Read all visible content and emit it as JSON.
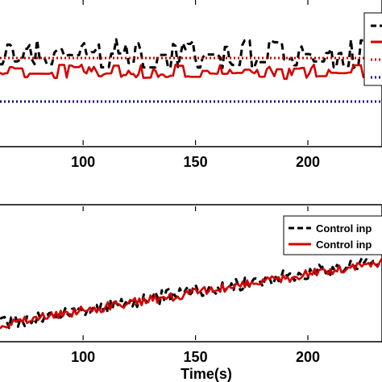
{
  "chart_data": [
    {
      "type": "line",
      "title": "",
      "xlabel": "",
      "ylabel": "",
      "xlim": [
        63,
        233
      ],
      "x_ticks": [
        100,
        150,
        200
      ],
      "ylim": [
        0,
        1
      ],
      "grid": false,
      "legend": {
        "placement": "top-right",
        "entries": [
          "",
          "",
          "",
          ""
        ]
      },
      "series": [
        {
          "color": "#000000",
          "style": "dashed",
          "x_range": [
            63,
            233
          ],
          "level": 0.62,
          "spread": 0.1
        },
        {
          "color": "#d40000",
          "style": "solid",
          "x_range": [
            63,
            233
          ],
          "level": 0.5,
          "spread": 0.05
        },
        {
          "color": "#d40000",
          "style": "dotted",
          "x": [
            63,
            233
          ],
          "values": [
            0.6,
            0.6
          ]
        },
        {
          "color": "#00008b",
          "style": "dotted",
          "x": [
            63,
            233
          ],
          "values": [
            0.3,
            0.3
          ]
        }
      ]
    },
    {
      "type": "line",
      "title": "",
      "xlabel": "Time(s)",
      "ylabel": "",
      "xlim": [
        63,
        233
      ],
      "x_ticks": [
        100,
        150,
        200
      ],
      "ylim": [
        0,
        1
      ],
      "grid": false,
      "legend": {
        "placement": "top-right",
        "entries": [
          "Control inp",
          "Control inp"
        ]
      },
      "series": [
        {
          "color": "#000000",
          "style": "dashed",
          "x_range": [
            63,
            233
          ],
          "start": 0.12,
          "end": 0.6,
          "noise": 0.05
        },
        {
          "color": "#d40000",
          "style": "solid",
          "x_range": [
            63,
            233
          ],
          "start": 0.12,
          "end": 0.58,
          "noise": 0.035
        }
      ]
    }
  ]
}
